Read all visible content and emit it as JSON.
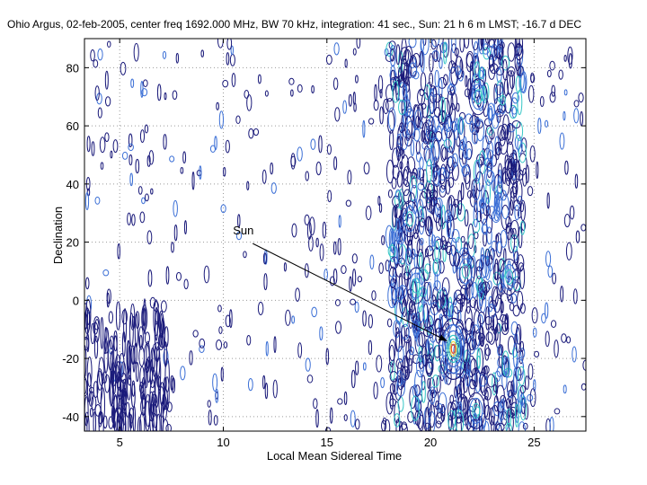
{
  "chart_data": {
    "type": "contour",
    "title": "Ohio Argus, 02-feb-2005, center freq 1692.000 MHz, BW 70 kHz, integration: 41 sec.,  Sun: 21 h 6 m LMST; -16.7 d DEC",
    "xlabel": "Local Mean Sidereal Time",
    "ylabel": "Declination",
    "xlim": [
      3.3,
      27.5
    ],
    "ylim": [
      -45,
      90
    ],
    "xticks": [
      5,
      10,
      15,
      20,
      25
    ],
    "yticks": [
      -40,
      -20,
      0,
      20,
      40,
      60,
      80
    ],
    "grid": true,
    "annotation": {
      "text": "Sun",
      "label_at": [
        10.9,
        22
      ],
      "arrow_to": [
        20.8,
        -14
      ]
    },
    "sun_source": {
      "lmst": 21.1,
      "dec": -16.7
    },
    "colors": {
      "contour_low": "#1a1a7a",
      "contour_mid": "#3b6fd6",
      "contour_high": "#36c6c6",
      "peak_ring_1": "#e8e050",
      "peak_ring_2": "#e85028",
      "grid": "#9a9a9a"
    }
  }
}
